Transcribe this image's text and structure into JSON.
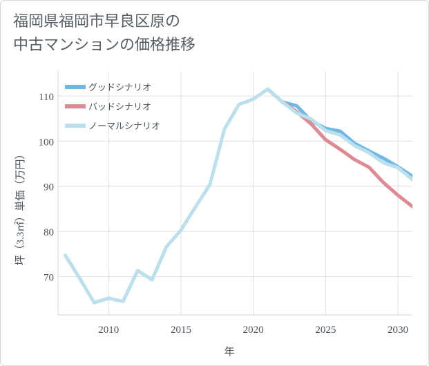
{
  "title_lines": [
    "福岡県福岡市早良区原の",
    "中古マンションの価格推移"
  ],
  "chart_data": {
    "type": "line",
    "title": "福岡県福岡市早良区原の中古マンションの価格推移",
    "xlabel": "年",
    "ylabel": "坪（3.3㎡）単価（万円）",
    "xlim": [
      2006.5,
      2031
    ],
    "ylim": [
      61.5,
      115.5
    ],
    "x_ticks": [
      2010,
      2015,
      2020,
      2025,
      2030
    ],
    "y_ticks": [
      70,
      80,
      90,
      100,
      110
    ],
    "grid": true,
    "legend_position": "top-left",
    "series": [
      {
        "name": "グッドシナリオ",
        "color": "#6fb7e6",
        "x": [
          2021,
          2022,
          2023,
          2024,
          2025,
          2026,
          2027,
          2028,
          2029,
          2030,
          2031
        ],
        "values": [
          111.5,
          108.7,
          107.8,
          104.5,
          102.8,
          102.2,
          99.5,
          97.8,
          96.2,
          94.3,
          92.2
        ]
      },
      {
        "name": "バッドシナリオ",
        "color": "#de8a93",
        "x": [
          2021,
          2022,
          2023,
          2024,
          2025,
          2026,
          2027,
          2028,
          2029,
          2030,
          2031
        ],
        "values": [
          111.5,
          108.7,
          106.5,
          103.8,
          100.3,
          98.2,
          95.9,
          94.2,
          90.8,
          88.0,
          85.5
        ]
      },
      {
        "name": "ノーマルシナリオ",
        "color": "#bcdfec",
        "x": [
          2007,
          2008,
          2009,
          2010,
          2011,
          2012,
          2013,
          2014,
          2015,
          2016,
          2017,
          2018,
          2019,
          2020,
          2021,
          2022,
          2023,
          2024,
          2025,
          2026,
          2027,
          2028,
          2029,
          2030,
          2031
        ],
        "values": [
          74.7,
          69.6,
          64.2,
          65.2,
          64.5,
          71.3,
          69.3,
          76.6,
          80.3,
          85.4,
          90.4,
          102.6,
          108.1,
          109.3,
          111.5,
          108.7,
          106.2,
          104.9,
          102.3,
          101.4,
          99.0,
          97.4,
          95.2,
          94.1,
          91.5
        ]
      }
    ]
  }
}
